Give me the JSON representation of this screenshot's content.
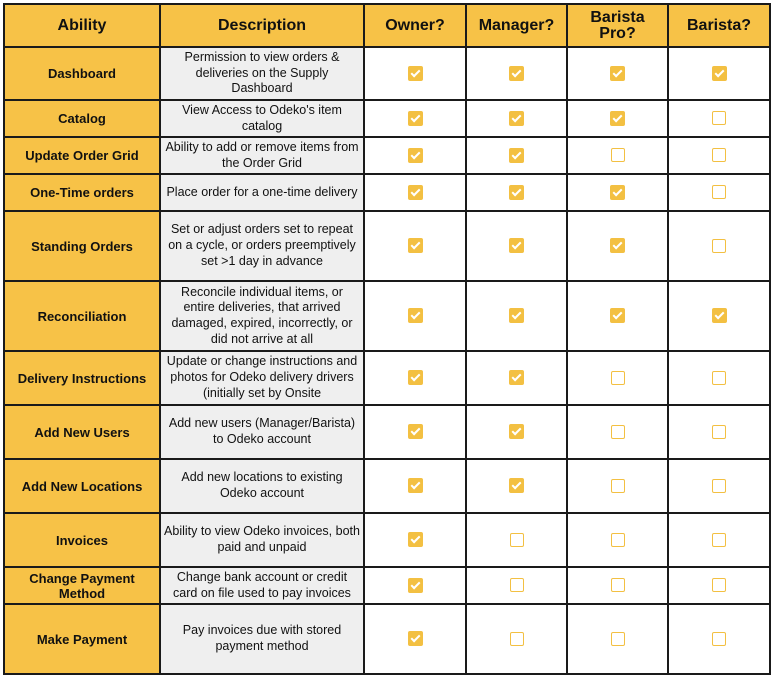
{
  "columns": [
    "Ability",
    "Description",
    "Owner?",
    "Manager?",
    "Barista Pro?",
    "Barista?"
  ],
  "rows": [
    {
      "ability": "Dashboard",
      "description": "Permission to view orders & deliveries on the Supply Dashboard",
      "owner": true,
      "manager": true,
      "barista_pro": true,
      "barista": true
    },
    {
      "ability": "Catalog",
      "description": "View Access to Odeko's item catalog",
      "owner": true,
      "manager": true,
      "barista_pro": true,
      "barista": false
    },
    {
      "ability": "Update Order Grid",
      "description": "Ability to add or remove items from the Order Grid",
      "owner": true,
      "manager": true,
      "barista_pro": false,
      "barista": false
    },
    {
      "ability": "One-Time orders",
      "description": "Place order for a one-time delivery",
      "owner": true,
      "manager": true,
      "barista_pro": true,
      "barista": false
    },
    {
      "ability": "Standing Orders",
      "description": "Set or adjust orders set to repeat on a cycle, or orders preemptively set >1 day in advance",
      "owner": true,
      "manager": true,
      "barista_pro": true,
      "barista": false
    },
    {
      "ability": "Reconciliation",
      "description": "Reconcile individual items, or entire deliveries, that arrived damaged, expired, incorrectly, or did not arrive at all",
      "owner": true,
      "manager": true,
      "barista_pro": true,
      "barista": true
    },
    {
      "ability": "Delivery Instructions",
      "description": "Update or change instructions and photos for Odeko delivery drivers (initially set by Onsite",
      "owner": true,
      "manager": true,
      "barista_pro": false,
      "barista": false
    },
    {
      "ability": "Add New Users",
      "description": "Add new users (Manager/Barista) to Odeko account",
      "owner": true,
      "manager": true,
      "barista_pro": false,
      "barista": false
    },
    {
      "ability": "Add New Locations",
      "description": "Add new locations to existing Odeko account",
      "owner": true,
      "manager": true,
      "barista_pro": false,
      "barista": false
    },
    {
      "ability": "Invoices",
      "description": "Ability to view Odeko invoices, both paid and unpaid",
      "owner": true,
      "manager": false,
      "barista_pro": false,
      "barista": false
    },
    {
      "ability": "Change Payment Method",
      "description": "Change bank account or credit card on file used to pay invoices",
      "owner": true,
      "manager": false,
      "barista_pro": false,
      "barista": false
    },
    {
      "ability": "Make Payment",
      "description": "Pay invoices due with stored payment method",
      "owner": true,
      "manager": false,
      "barista_pro": false,
      "barista": false
    }
  ],
  "colors": {
    "header_fill": "#f7c247",
    "description_fill": "#efefef",
    "checkbox": "#f3c042",
    "border": "#1a1a1a"
  }
}
